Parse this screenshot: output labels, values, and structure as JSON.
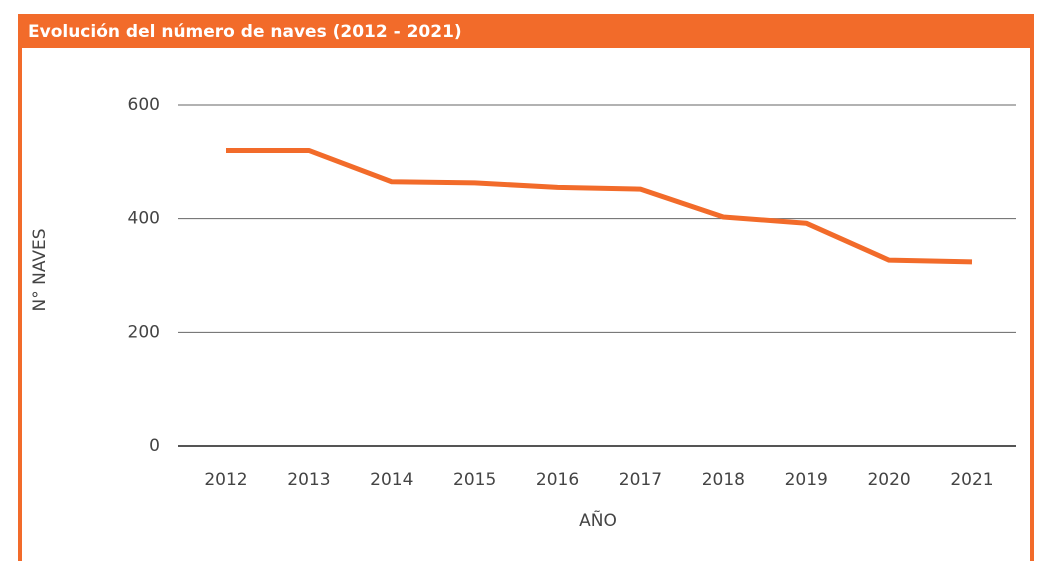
{
  "chart_data": {
    "type": "line",
    "title": "Evolución del número de naves (2012 - 2021)",
    "x_label": "AÑO",
    "y_label": "N° NAVES",
    "categories": [
      "2012",
      "2013",
      "2014",
      "2015",
      "2016",
      "2017",
      "2018",
      "2019",
      "2020",
      "2021"
    ],
    "series": [
      {
        "name": "Naves",
        "color": "#f26b2a",
        "values": [
          520,
          520,
          465,
          463,
          455,
          452,
          403,
          392,
          327,
          324
        ]
      }
    ],
    "ylim": [
      0,
      600
    ],
    "yticks": [
      0,
      200,
      400,
      600
    ],
    "grid": true
  }
}
